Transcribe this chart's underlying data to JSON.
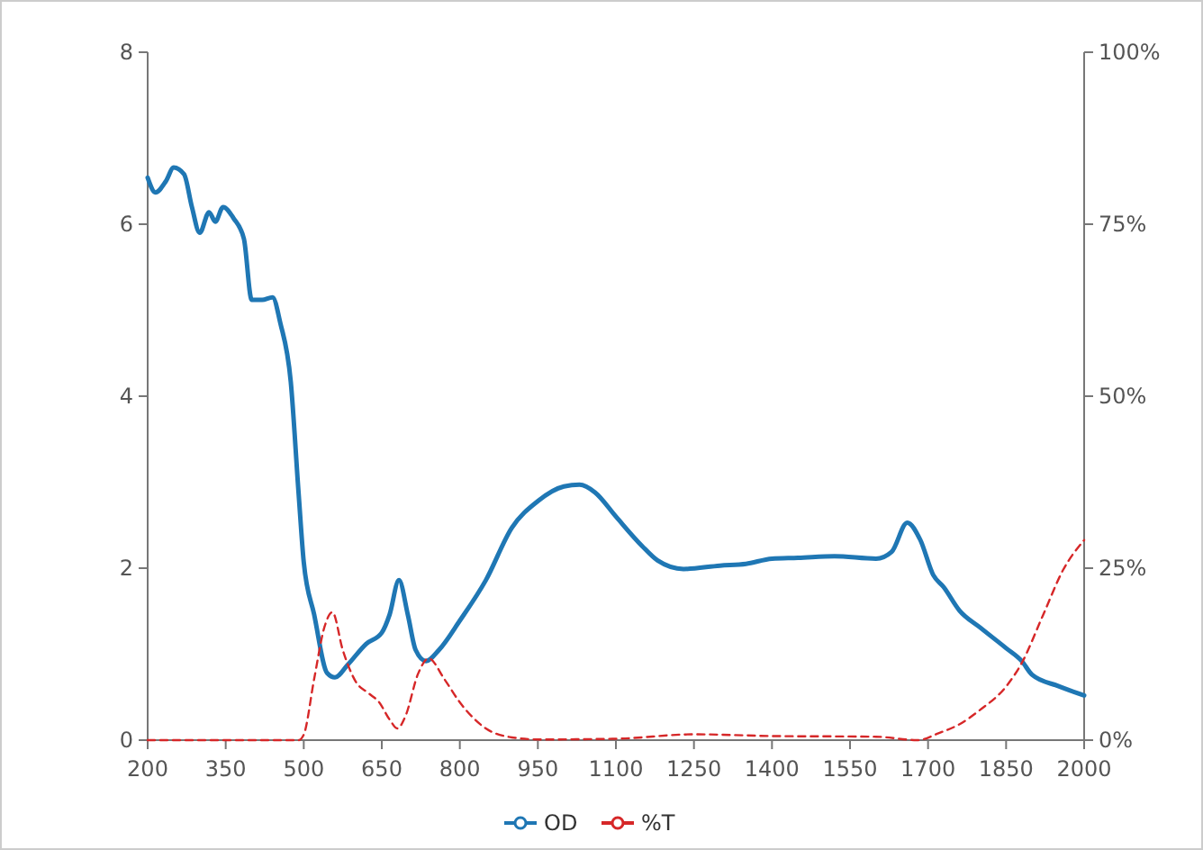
{
  "chart_data": {
    "type": "line",
    "xlim": [
      200,
      2000
    ],
    "xticks": [
      200,
      350,
      500,
      650,
      800,
      950,
      1100,
      1250,
      1400,
      1550,
      1700,
      1850,
      2000
    ],
    "ylim": [
      0,
      8
    ],
    "yticks": [
      0,
      2,
      4,
      6,
      8
    ],
    "y2lim": [
      0,
      100
    ],
    "y2ticks": [
      {
        "value": 0,
        "label": "0%"
      },
      {
        "value": 25,
        "label": "25%"
      },
      {
        "value": 50,
        "label": "50%"
      },
      {
        "value": 75,
        "label": "75%"
      },
      {
        "value": 100,
        "label": "100%"
      }
    ],
    "legend": "bottom",
    "grid": false,
    "series": [
      {
        "name": "OD",
        "color": "#1f77b4",
        "line_style": "solid",
        "x": [
          200,
          215,
          235,
          250,
          270,
          285,
          300,
          318,
          330,
          345,
          365,
          385,
          400,
          420,
          440,
          455,
          475,
          490,
          500,
          520,
          545,
          560,
          585,
          620,
          650,
          665,
          683,
          700,
          715,
          735,
          760,
          800,
          850,
          900,
          950,
          1000,
          1030,
          1060,
          1100,
          1150,
          1180,
          1230,
          1300,
          1350,
          1400,
          1450,
          1520,
          1600,
          1630,
          1660,
          1685,
          1710,
          1730,
          1760,
          1800,
          1850,
          1880,
          1900,
          1950,
          2000
        ],
        "values": [
          6.54,
          6.37,
          6.5,
          6.66,
          6.58,
          6.2,
          5.9,
          6.14,
          6.03,
          6.2,
          6.07,
          5.83,
          5.12,
          5.12,
          5.15,
          4.85,
          4.17,
          2.88,
          2.07,
          1.46,
          0.78,
          0.73,
          0.88,
          1.12,
          1.25,
          1.46,
          1.86,
          1.46,
          1.05,
          0.92,
          1.05,
          1.39,
          1.86,
          2.47,
          2.78,
          2.95,
          2.97,
          2.88,
          2.6,
          2.26,
          2.09,
          1.99,
          2.03,
          2.05,
          2.11,
          2.12,
          2.14,
          2.11,
          2.19,
          2.53,
          2.33,
          1.92,
          1.78,
          1.51,
          1.31,
          1.07,
          0.92,
          0.76,
          0.63,
          0.52
        ]
      },
      {
        "name": "%T",
        "color": "#d62728",
        "line_style": "dashed",
        "axis": "y2",
        "x": [
          200,
          490,
          500,
          520,
          540,
          555,
          575,
          600,
          625,
          645,
          665,
          680,
          695,
          720,
          740,
          770,
          800,
          850,
          900,
          950,
          1100,
          1250,
          1400,
          1600,
          1680,
          1720,
          1760,
          1800,
          1850,
          1880,
          1920,
          1960,
          2000
        ],
        "values": [
          0,
          0,
          0.8,
          8.9,
          16.5,
          18.6,
          13.1,
          8.5,
          6.8,
          5.5,
          3,
          1.7,
          3.4,
          9.7,
          11.9,
          8.9,
          5.5,
          1.7,
          0.4,
          0.1,
          0.2,
          0.85,
          0.6,
          0.5,
          0,
          1,
          2.3,
          4.4,
          7.8,
          11.2,
          18,
          24.8,
          29.1
        ]
      }
    ]
  }
}
